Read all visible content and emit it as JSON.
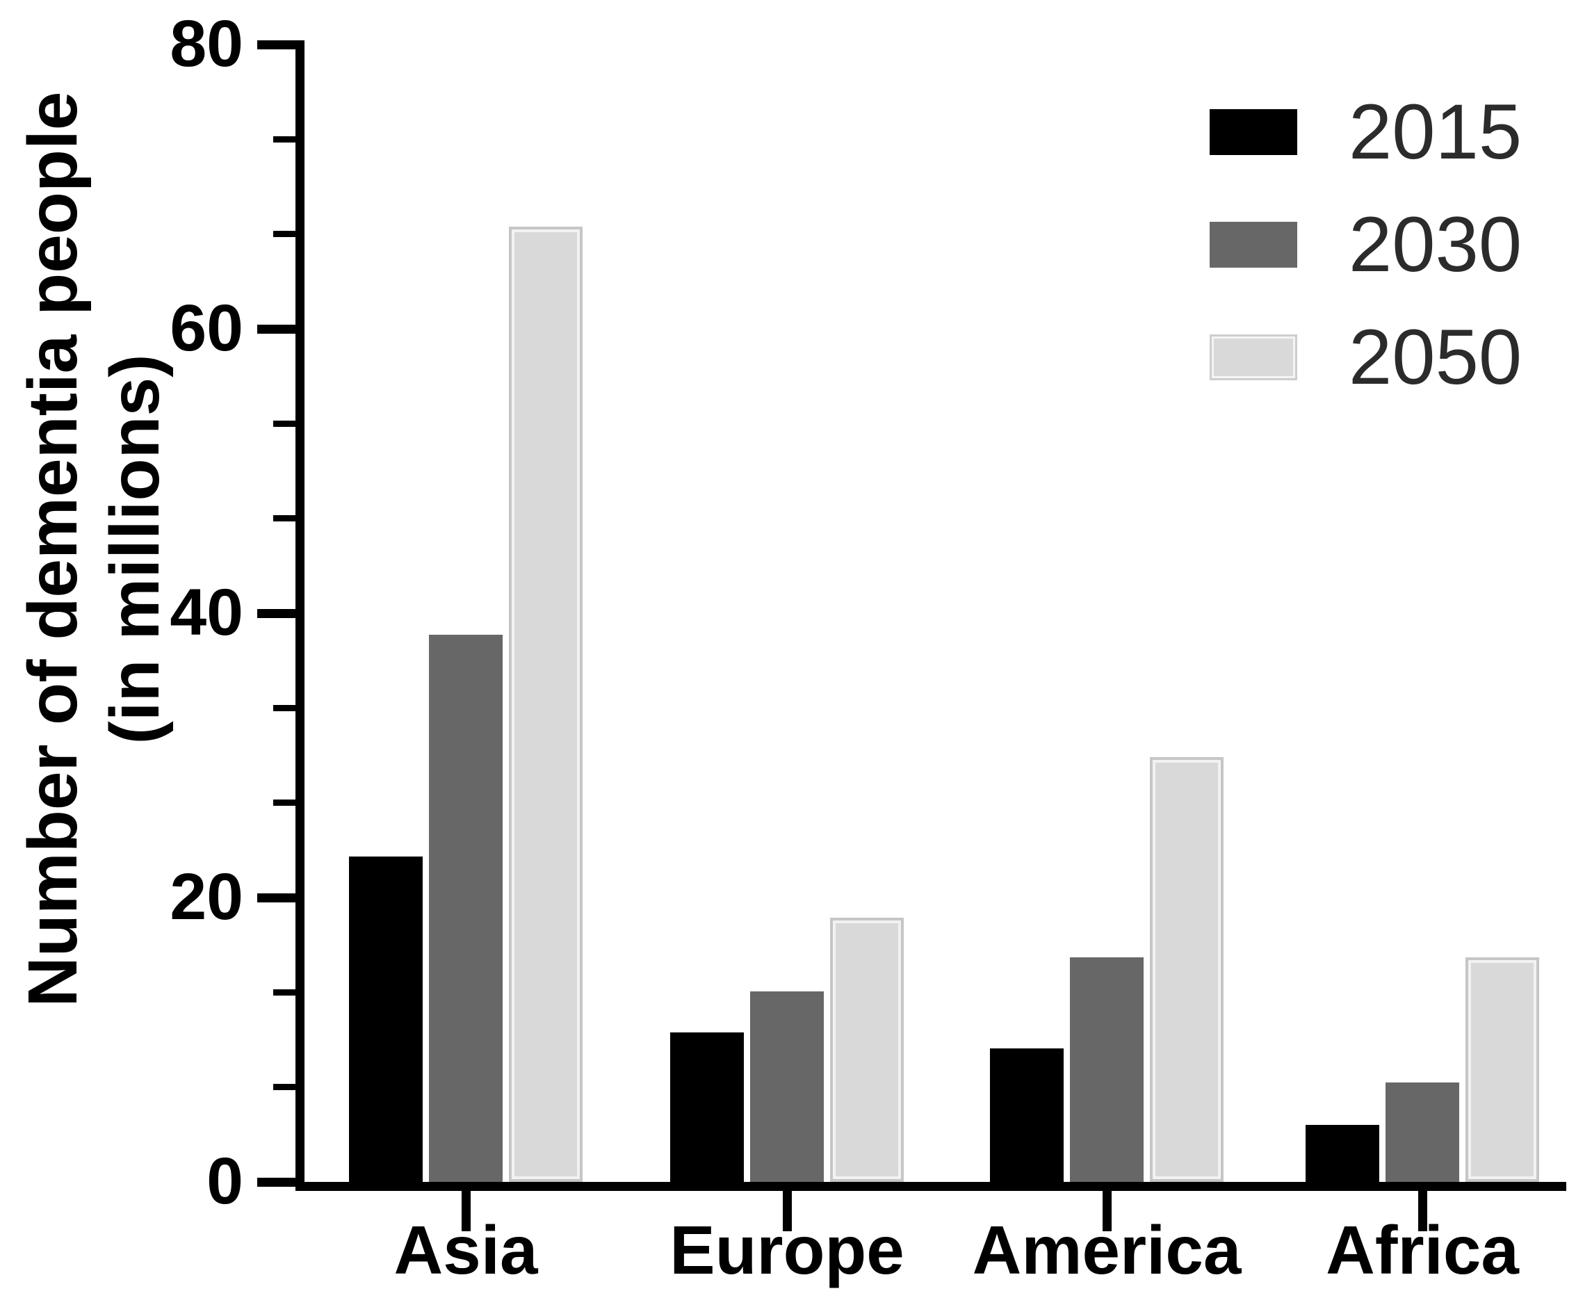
{
  "chart_data": {
    "type": "bar",
    "title": "",
    "ylabel_line1": "Number of dementia people",
    "ylabel_line2": "(in millions)",
    "xlabel": "",
    "categories": [
      "Asia",
      "Europe",
      "America",
      "Africa"
    ],
    "series": [
      {
        "name": "2015",
        "color": "#000000",
        "values": [
          22.9,
          10.5,
          9.4,
          4.0
        ]
      },
      {
        "name": "2030",
        "color": "#676767",
        "values": [
          38.5,
          13.4,
          15.8,
          7.0
        ]
      },
      {
        "name": "2050",
        "color": "#d9d9d9",
        "border_color": "#c6c6c6",
        "values": [
          67.2,
          18.6,
          29.9,
          15.8
        ]
      }
    ],
    "ylim": [
      0,
      80
    ],
    "yticks": [
      0,
      20,
      40,
      60,
      80
    ],
    "minor_ticks_per_major_interval": 2,
    "grid": false,
    "legend_position": "top-right",
    "background": "#ffffff",
    "axis_color": "#000000",
    "legend_text_color": "#2b2b2b"
  }
}
